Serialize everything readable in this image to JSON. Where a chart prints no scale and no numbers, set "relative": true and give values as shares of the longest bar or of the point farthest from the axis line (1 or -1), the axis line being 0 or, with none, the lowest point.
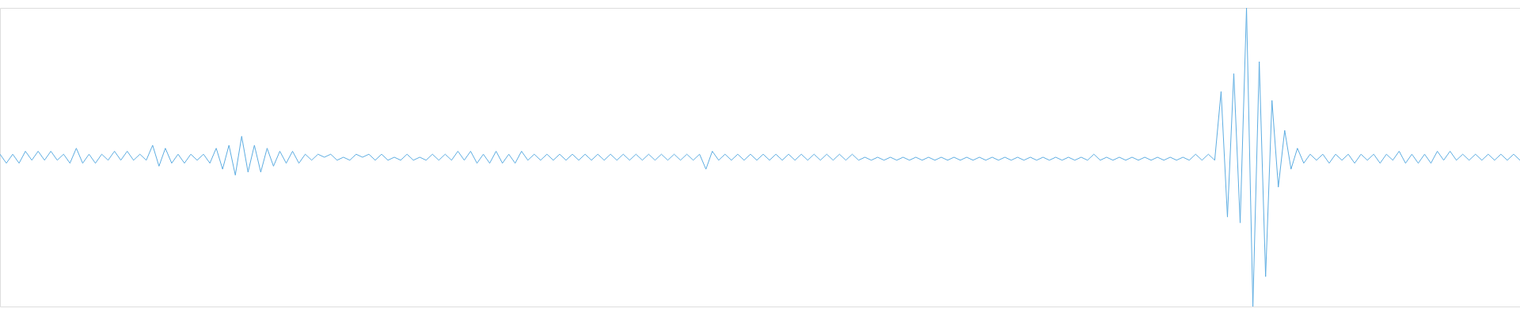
{
  "chart_data": {
    "type": "line",
    "relative": true,
    "tick_labels": false,
    "line_style": "solid",
    "categories": [
      null,
      null,
      null,
      null,
      null,
      null,
      null,
      null,
      null,
      null,
      null,
      null,
      null,
      null,
      null,
      null,
      null,
      null,
      null,
      null,
      null,
      null,
      null,
      null,
      null,
      null,
      null,
      null,
      null,
      null,
      null,
      null,
      null,
      null,
      null,
      null,
      null,
      null,
      null,
      null,
      null,
      null,
      null,
      null,
      null,
      null,
      null,
      null,
      null,
      null,
      null,
      null,
      null,
      null,
      null,
      null,
      null,
      null,
      null,
      null,
      null,
      null,
      null,
      null,
      null,
      null,
      null,
      null,
      null,
      null,
      null,
      null,
      null,
      null,
      null,
      null,
      null,
      null,
      null,
      null,
      null,
      null,
      null,
      null,
      null,
      null,
      null,
      null,
      null,
      null,
      null,
      null,
      null,
      null,
      null,
      null,
      null,
      null,
      null,
      null,
      null,
      null,
      null,
      null,
      null,
      null,
      null,
      null,
      null,
      null,
      null,
      null,
      null,
      null,
      null,
      null,
      null,
      null,
      null,
      null,
      null,
      null,
      null,
      null,
      null,
      null,
      null,
      null,
      null,
      null,
      null,
      null,
      null,
      null,
      null,
      null,
      null,
      null,
      null,
      null,
      null,
      null,
      null,
      null,
      null,
      null,
      null,
      null,
      null,
      null,
      null,
      null,
      null,
      null,
      null,
      null,
      null,
      null,
      null,
      null,
      null,
      null,
      null,
      null,
      null,
      null,
      null,
      null,
      null,
      null,
      null,
      null,
      null,
      null,
      null,
      null,
      null,
      null,
      null,
      null,
      null,
      null,
      null,
      null,
      null,
      null,
      null,
      null,
      null,
      null,
      null,
      null,
      null,
      null,
      null,
      null,
      null,
      null,
      null,
      null,
      null,
      null,
      null,
      null,
      null,
      null,
      null,
      null,
      null,
      null,
      null,
      null,
      null,
      null,
      null,
      null,
      null,
      null,
      null,
      null,
      null,
      null,
      null,
      null,
      null,
      null,
      null,
      null,
      null,
      null,
      null,
      null,
      null,
      null,
      null,
      null,
      null,
      null,
      null,
      null
    ],
    "series": [
      {
        "color": "#5dade2",
        "values": [
          0.51,
          0.48,
          0.51,
          0.48,
          0.52,
          0.49,
          0.52,
          0.49,
          0.52,
          0.49,
          0.51,
          0.48,
          0.53,
          0.48,
          0.51,
          0.48,
          0.51,
          0.49,
          0.52,
          0.49,
          0.52,
          0.49,
          0.51,
          0.49,
          0.54,
          0.47,
          0.53,
          0.48,
          0.51,
          0.48,
          0.51,
          0.49,
          0.51,
          0.48,
          0.53,
          0.46,
          0.54,
          0.44,
          0.57,
          0.45,
          0.54,
          0.45,
          0.53,
          0.47,
          0.52,
          0.48,
          0.52,
          0.48,
          0.51,
          0.49,
          0.51,
          0.5,
          0.51,
          0.49,
          0.5,
          0.49,
          0.51,
          0.5,
          0.51,
          0.49,
          0.51,
          0.49,
          0.5,
          0.49,
          0.51,
          0.49,
          0.5,
          0.49,
          0.51,
          0.49,
          0.51,
          0.49,
          0.52,
          0.49,
          0.52,
          0.48,
          0.51,
          0.48,
          0.52,
          0.48,
          0.51,
          0.48,
          0.52,
          0.49,
          0.51,
          0.49,
          0.51,
          0.49,
          0.51,
          0.49,
          0.51,
          0.49,
          0.51,
          0.49,
          0.51,
          0.49,
          0.51,
          0.49,
          0.51,
          0.49,
          0.51,
          0.49,
          0.51,
          0.49,
          0.51,
          0.49,
          0.51,
          0.49,
          0.51,
          0.49,
          0.51,
          0.46,
          0.52,
          0.49,
          0.51,
          0.49,
          0.51,
          0.49,
          0.51,
          0.49,
          0.51,
          0.49,
          0.51,
          0.49,
          0.51,
          0.49,
          0.51,
          0.49,
          0.51,
          0.49,
          0.51,
          0.49,
          0.51,
          0.49,
          0.51,
          0.49,
          0.5,
          0.49,
          0.5,
          0.49,
          0.5,
          0.49,
          0.5,
          0.49,
          0.5,
          0.49,
          0.5,
          0.49,
          0.5,
          0.49,
          0.5,
          0.49,
          0.5,
          0.49,
          0.5,
          0.49,
          0.5,
          0.49,
          0.5,
          0.49,
          0.5,
          0.49,
          0.5,
          0.49,
          0.5,
          0.49,
          0.5,
          0.49,
          0.5,
          0.49,
          0.5,
          0.49,
          0.51,
          0.49,
          0.5,
          0.49,
          0.5,
          0.49,
          0.5,
          0.49,
          0.5,
          0.49,
          0.5,
          0.49,
          0.5,
          0.49,
          0.5,
          0.49,
          0.51,
          0.49,
          0.51,
          0.49,
          0.72,
          0.3,
          0.78,
          0.28,
          1,
          0,
          0.82,
          0.1,
          0.69,
          0.4,
          0.59,
          0.46,
          0.53,
          0.48,
          0.51,
          0.49,
          0.51,
          0.48,
          0.51,
          0.49,
          0.51,
          0.48,
          0.51,
          0.49,
          0.51,
          0.48,
          0.51,
          0.49,
          0.52,
          0.48,
          0.51,
          0.48,
          0.51,
          0.48,
          0.52,
          0.49,
          0.52,
          0.49,
          0.51,
          0.49,
          0.51,
          0.49,
          0.51,
          0.49,
          0.51,
          0.49,
          0.51,
          0.49
        ]
      }
    ]
  }
}
